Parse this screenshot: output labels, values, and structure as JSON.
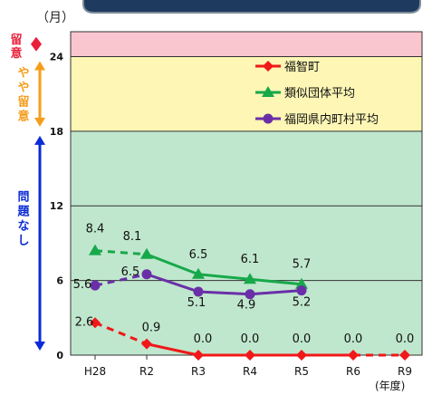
{
  "chart_data": {
    "type": "line",
    "unit_label": "（月）",
    "x_axis_unit": "(年度)",
    "categories": [
      "H28",
      "R2",
      "R3",
      "R4",
      "R5",
      "R6",
      "R9"
    ],
    "ylim": [
      0,
      26
    ],
    "yticks": [
      0,
      6,
      12,
      18,
      24
    ],
    "bands": [
      {
        "from": 24,
        "to": 26,
        "label": "留意",
        "fill": "#f9c6cf",
        "arrow_color": "#e8203a"
      },
      {
        "from": 18,
        "to": 24,
        "label": "やや留意",
        "fill": "#fdf6b4",
        "arrow_color": "#f59d1a"
      },
      {
        "from": 0,
        "to": 18,
        "label": "問題なし",
        "fill": "#bfe7cd",
        "arrow_color": "#0b2bd6"
      }
    ],
    "series": [
      {
        "name": "福智町",
        "color": "#f01818",
        "marker": "diamond",
        "values": [
          2.6,
          0.9,
          0.0,
          0.0,
          0.0,
          0.0,
          0.0
        ],
        "labels": [
          "2.6",
          "0.9",
          "0.0",
          "0.0",
          "0.0",
          "0.0",
          "0.0"
        ],
        "dashed_segments": [
          0,
          5
        ]
      },
      {
        "name": "類似団体平均",
        "color": "#17a84a",
        "marker": "triangle",
        "values": [
          8.4,
          8.1,
          6.5,
          6.1,
          5.7,
          null,
          null
        ],
        "labels": [
          "8.4",
          "8.1",
          "6.5",
          "6.1",
          "5.7",
          "",
          ""
        ],
        "dashed_segments": [
          0
        ]
      },
      {
        "name": "福岡県内町村平均",
        "color": "#6a2fa8",
        "marker": "circle",
        "values": [
          5.6,
          6.5,
          5.1,
          4.9,
          5.2,
          null,
          null
        ],
        "labels": [
          "5.6",
          "6.5",
          "5.1",
          "4.9",
          "5.2",
          "",
          ""
        ],
        "dashed_segments": [
          0
        ]
      }
    ]
  }
}
